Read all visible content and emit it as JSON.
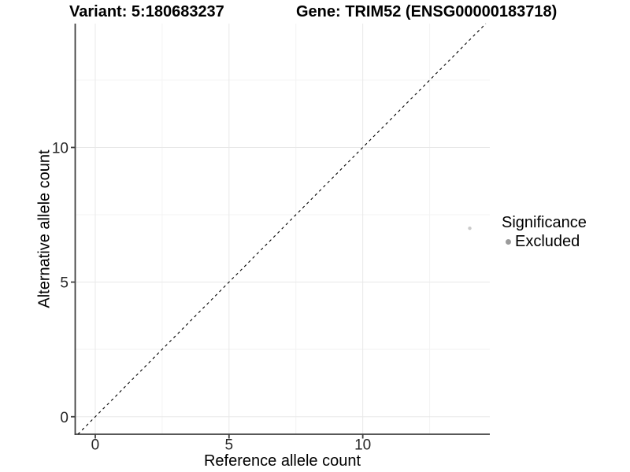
{
  "header": {
    "variant_label": "Variant: 5:180683237",
    "gene_label": "Gene: TRIM52 (ENSG00000183718)"
  },
  "chart_data": {
    "type": "scatter",
    "title": "",
    "xlabel": "Reference allele count",
    "ylabel": "Alternative allele count",
    "xlim": [
      -0.75,
      14.75
    ],
    "ylim": [
      -0.65,
      14.6
    ],
    "x_ticks": [
      0,
      5,
      10
    ],
    "y_ticks": [
      0,
      5,
      10
    ],
    "x_minor_ticks": [
      2.5,
      7.5,
      12.5
    ],
    "y_minor_ticks": [
      2.5,
      7.5,
      12.5
    ],
    "grid": true,
    "identity_line": {
      "style": "dashed",
      "slope": 1,
      "intercept": 0,
      "color": "#000000"
    },
    "points": [
      {
        "x": 14,
        "y": 7,
        "series": "Excluded"
      }
    ],
    "series_styles": {
      "Excluded": {
        "color": "#cacaca",
        "radius": 2.2
      }
    },
    "legend": {
      "position": "right",
      "title": "Significance",
      "items": [
        {
          "label": "Excluded",
          "color": "#9b9b9b"
        }
      ]
    },
    "colors": {
      "axis_line": "#404040",
      "grid_major": "#e8e8e8",
      "grid_minor": "#f3f3f3"
    }
  }
}
